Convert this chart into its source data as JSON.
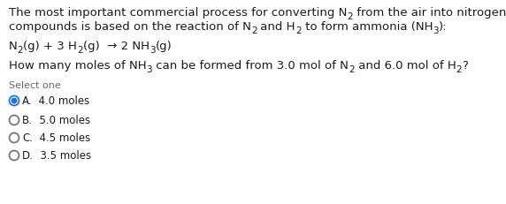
{
  "bg_color": "#ffffff",
  "text_color": "#1a1a1a",
  "body_fontsize": 9.5,
  "eq_fontsize": 9.5,
  "select_fontsize": 8.0,
  "option_fontsize": 8.5,
  "selected_color": "#1a73e8",
  "unselected_color": "#777777",
  "line1_normal": "The most important commercial process for converting N",
  "line1_sub": "2",
  "line1_end": " from the air into nitrogen-containing",
  "line2_start": "compounds is based on the reaction of N",
  "line2_sub1": "2",
  "line2_mid1": " and H",
  "line2_sub2": "2",
  "line2_mid2": " to form ammonia (NH",
  "line2_sub3": "3",
  "line2_end": "):",
  "eq_n2": "N",
  "eq_n2sub": "2",
  "eq_mid": "(g) + 3 H",
  "eq_h2sub": "2",
  "eq_end": "(g)  → 2 NH",
  "eq_nh3sub": "3",
  "eq_final": "(g)",
  "q_start": "How many moles of NH",
  "q_sub1": "3",
  "q_mid1": " can be formed from 3.0 mol of N",
  "q_sub2": "2",
  "q_mid2": " and 6.0 mol of H",
  "q_sub3": "2",
  "q_end": "?",
  "select_label": "Select one",
  "options": [
    {
      "letter": "A.",
      "text": "  4.0 moles",
      "selected": true
    },
    {
      "letter": "B.",
      "text": "  5.0 moles",
      "selected": false
    },
    {
      "letter": "C.",
      "text": "  4.5 moles",
      "selected": false
    },
    {
      "letter": "D.",
      "text": "  3.5 moles",
      "selected": false
    }
  ]
}
